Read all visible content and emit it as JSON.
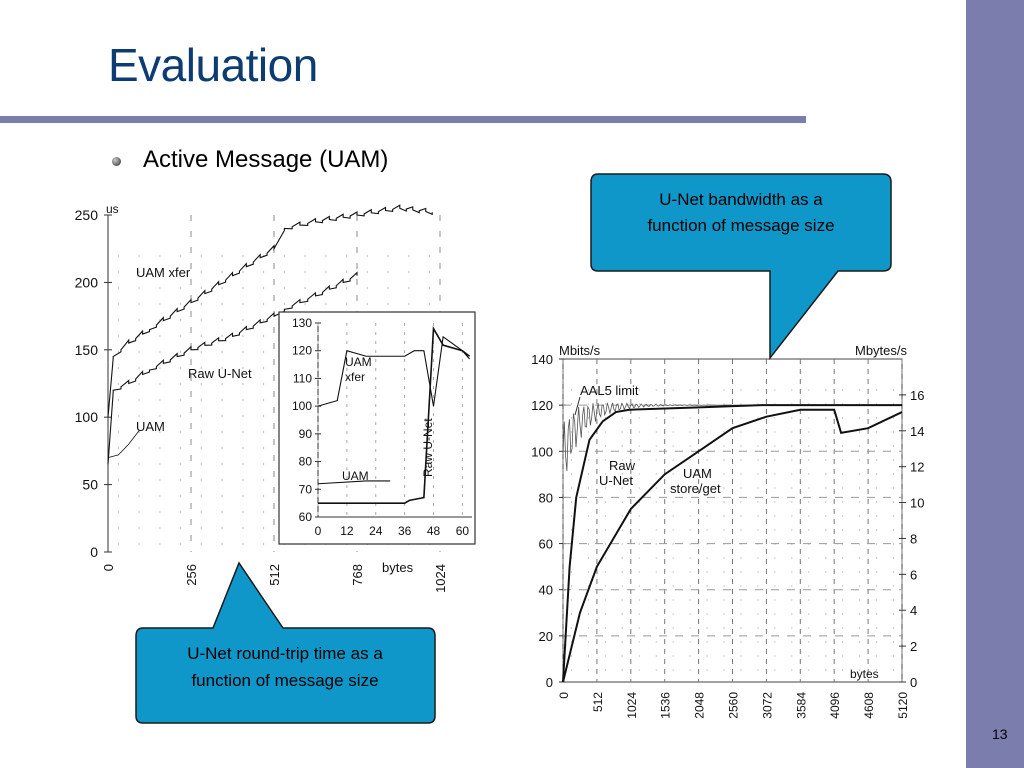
{
  "slide": {
    "title": "Evaluation",
    "bullet": "Active Message (UAM)",
    "page_number": "13"
  },
  "callouts": {
    "bandwidth": [
      "U-Net bandwidth as a",
      "function of message size"
    ],
    "roundtrip": [
      "U-Net round-trip time as a",
      "function of message size"
    ]
  },
  "colors": {
    "accent": "#7b7dac",
    "title": "#0d3c73",
    "callout": "#1097c9"
  },
  "chart_data": [
    {
      "type": "line",
      "ylabel": "us",
      "xlabel": "bytes",
      "xlim": [
        0,
        1024
      ],
      "ylim": [
        0,
        250
      ],
      "x_ticks": [
        "0",
        "256",
        "512",
        "768",
        "1024"
      ],
      "y_ticks": [
        "0",
        "50",
        "100",
        "150",
        "200",
        "250"
      ],
      "series": [
        {
          "name": "UAM xfer",
          "x": [
            0,
            16,
            64,
            128,
            256,
            384,
            512,
            544,
            640,
            768,
            900,
            1000
          ],
          "y": [
            100,
            145,
            155,
            165,
            185,
            205,
            225,
            240,
            245,
            250,
            255,
            252
          ]
        },
        {
          "name": "Raw U-Net",
          "x": [
            0,
            16,
            64,
            128,
            256,
            384,
            512,
            544,
            640,
            768
          ],
          "y": [
            65,
            120,
            125,
            135,
            150,
            160,
            175,
            180,
            190,
            205
          ]
        },
        {
          "name": "UAM",
          "x": [
            0,
            32,
            64,
            96
          ],
          "y": [
            70,
            72,
            80,
            90
          ]
        }
      ],
      "inset": {
        "xlim": [
          0,
          64
        ],
        "ylim": [
          60,
          130
        ],
        "x_ticks": [
          "0",
          "12",
          "24",
          "36",
          "48",
          "60"
        ],
        "y_ticks": [
          "60",
          "70",
          "80",
          "90",
          "100",
          "110",
          "120",
          "130"
        ],
        "series": [
          {
            "name": "UAM xfer",
            "x": [
              0,
              8,
              12,
              20,
              28,
              36,
              40,
              44,
              48,
              52,
              60,
              63
            ],
            "y": [
              100,
              102,
              120,
              118,
              118,
              118,
              120,
              120,
              100,
              125,
              120,
              117
            ]
          },
          {
            "name": "Raw U-Net",
            "x": [
              0,
              20,
              36,
              38,
              44,
              48,
              52,
              60,
              63
            ],
            "y": [
              65,
              65,
              65,
              66,
              67,
              128,
              122,
              120,
              118
            ]
          },
          {
            "name": "UAM",
            "x": [
              0,
              20,
              30
            ],
            "y": [
              72,
              73,
              73
            ]
          }
        ]
      }
    },
    {
      "type": "line",
      "ylabel": "Mbits/s",
      "y2label": "Mbytes/s",
      "xlabel": "bytes",
      "xlim": [
        0,
        5120
      ],
      "ylim": [
        0,
        140
      ],
      "y2lim": [
        0,
        18
      ],
      "x_ticks": [
        "0",
        "512",
        "1024",
        "1536",
        "2048",
        "2560",
        "3072",
        "3584",
        "4096",
        "4608",
        "5120"
      ],
      "y_ticks": [
        "0",
        "20",
        "40",
        "60",
        "80",
        "100",
        "120",
        "140"
      ],
      "y2_ticks": [
        "0",
        "2",
        "4",
        "6",
        "8",
        "10",
        "12",
        "14",
        "16"
      ],
      "annotations": [
        "AAL5 limit"
      ],
      "series": [
        {
          "name": "AAL5 limit",
          "x": [
            0,
            100,
            300,
            600,
            1000,
            2000,
            3000,
            5120
          ],
          "y": [
            100,
            115,
            118,
            120,
            120,
            120,
            120,
            120
          ]
        },
        {
          "name": "Raw U-Net",
          "x": [
            0,
            100,
            200,
            400,
            600,
            800,
            1000,
            2000,
            3000,
            5120
          ],
          "y": [
            0,
            50,
            80,
            105,
            113,
            117,
            118,
            119,
            120,
            120
          ]
        },
        {
          "name": "UAM store/get",
          "x": [
            0,
            256,
            512,
            1024,
            1536,
            2048,
            2560,
            3072,
            3584,
            4096,
            4200,
            4608,
            5120
          ],
          "y": [
            0,
            30,
            50,
            75,
            90,
            100,
            110,
            115,
            118,
            118,
            108,
            110,
            117
          ]
        }
      ]
    }
  ]
}
